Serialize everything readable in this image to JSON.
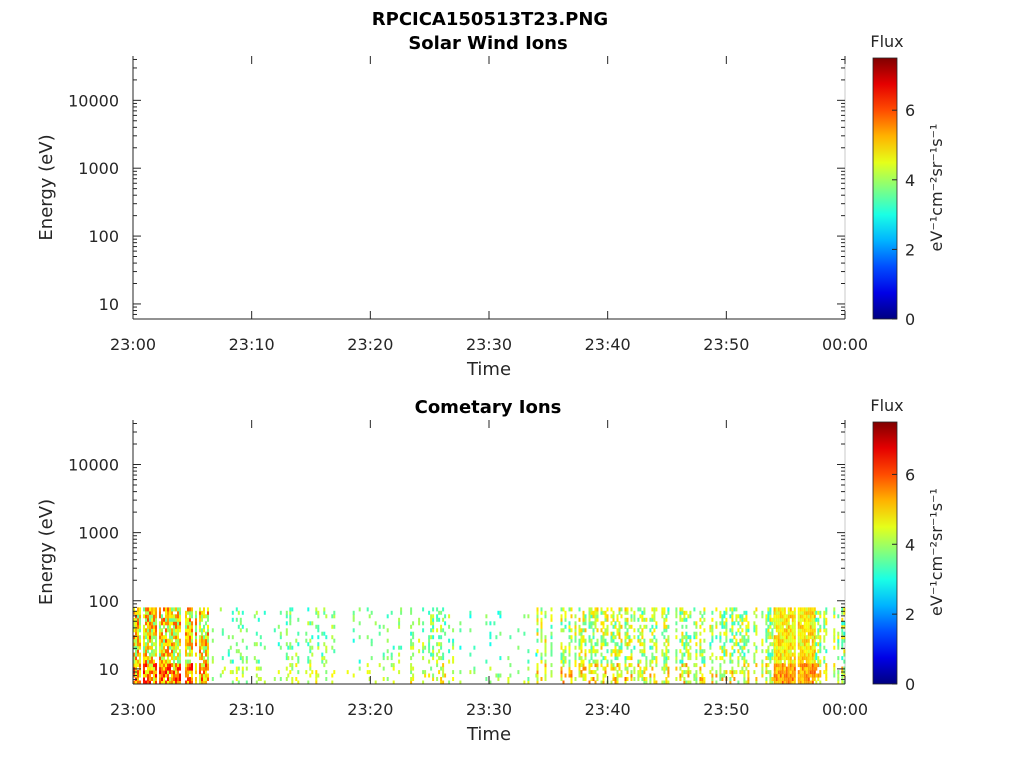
{
  "figure_title": "RPCICA150513T23.PNG",
  "chart_data": [
    {
      "type": "heatmap",
      "title": "Solar Wind Ions",
      "xlabel": "Time",
      "ylabel": "Energy (eV)",
      "yscale": "log",
      "ylim": [
        6,
        45000
      ],
      "xlim": [
        "23:00",
        "00:00"
      ],
      "x_ticks": [
        "23:00",
        "23:10",
        "23:20",
        "23:30",
        "23:40",
        "23:50",
        "00:00"
      ],
      "y_ticks": [
        "10",
        "100",
        "1000",
        "10000"
      ],
      "colorbar": {
        "title": "Flux",
        "label": "eV⁻¹cm⁻²sr⁻¹s⁻¹",
        "range": [
          0,
          7.5
        ],
        "ticks": [
          "0",
          "2",
          "4",
          "6"
        ],
        "colormap": "jet"
      },
      "data_present": false,
      "bands": []
    },
    {
      "type": "heatmap",
      "title": "Cometary Ions",
      "xlabel": "Time",
      "ylabel": "Energy (eV)",
      "yscale": "log",
      "ylim": [
        6,
        45000
      ],
      "xlim": [
        "23:00",
        "00:00"
      ],
      "x_ticks": [
        "23:00",
        "23:10",
        "23:20",
        "23:30",
        "23:40",
        "23:50",
        "00:00"
      ],
      "y_ticks": [
        "10",
        "100",
        "1000",
        "10000"
      ],
      "colorbar": {
        "title": "Flux",
        "label": "eV⁻¹cm⁻²sr⁻¹s⁻¹",
        "range": [
          0,
          7.5
        ],
        "ticks": [
          "0",
          "2",
          "4",
          "6"
        ],
        "colormap": "jet"
      },
      "data_present": true,
      "energy_range_ev": [
        6,
        80
      ],
      "bands": [
        {
          "start_min": 0.0,
          "end_min": 6.3,
          "density": 0.85,
          "flux_mean": 4.8,
          "flux_spread": 1.3
        },
        {
          "start_min": 6.3,
          "end_min": 13.0,
          "density": 0.22,
          "flux_mean": 3.6,
          "flux_spread": 0.6
        },
        {
          "start_min": 13.0,
          "end_min": 17.0,
          "density": 0.28,
          "flux_mean": 3.7,
          "flux_spread": 0.7
        },
        {
          "start_min": 17.0,
          "end_min": 22.0,
          "density": 0.18,
          "flux_mean": 3.5,
          "flux_spread": 0.6
        },
        {
          "start_min": 22.0,
          "end_min": 27.0,
          "density": 0.34,
          "flux_mean": 3.8,
          "flux_spread": 0.8
        },
        {
          "start_min": 27.0,
          "end_min": 34.0,
          "density": 0.16,
          "flux_mean": 3.4,
          "flux_spread": 0.6
        },
        {
          "start_min": 34.0,
          "end_min": 42.0,
          "density": 0.55,
          "flux_mean": 4.2,
          "flux_spread": 1.0
        },
        {
          "start_min": 42.0,
          "end_min": 54.0,
          "density": 0.48,
          "flux_mean": 4.0,
          "flux_spread": 1.0
        },
        {
          "start_min": 54.0,
          "end_min": 57.5,
          "density": 0.95,
          "flux_mean": 4.8,
          "flux_spread": 0.6
        },
        {
          "start_min": 57.5,
          "end_min": 60.0,
          "density": 0.6,
          "flux_mean": 4.0,
          "flux_spread": 1.0
        }
      ]
    }
  ]
}
